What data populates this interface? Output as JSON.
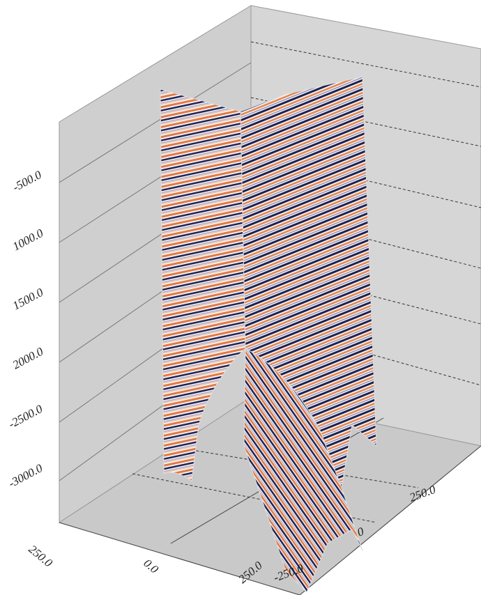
{
  "axes": {
    "depth_labels": [
      "-500.0",
      "1000.0",
      "1500.0",
      "2000.0",
      "-2500.0",
      "-3000.0"
    ],
    "front_labels": [
      "250.0",
      "0.0",
      "250.0"
    ],
    "right_labels": [
      "250.0",
      "0",
      "-250.0"
    ]
  }
}
